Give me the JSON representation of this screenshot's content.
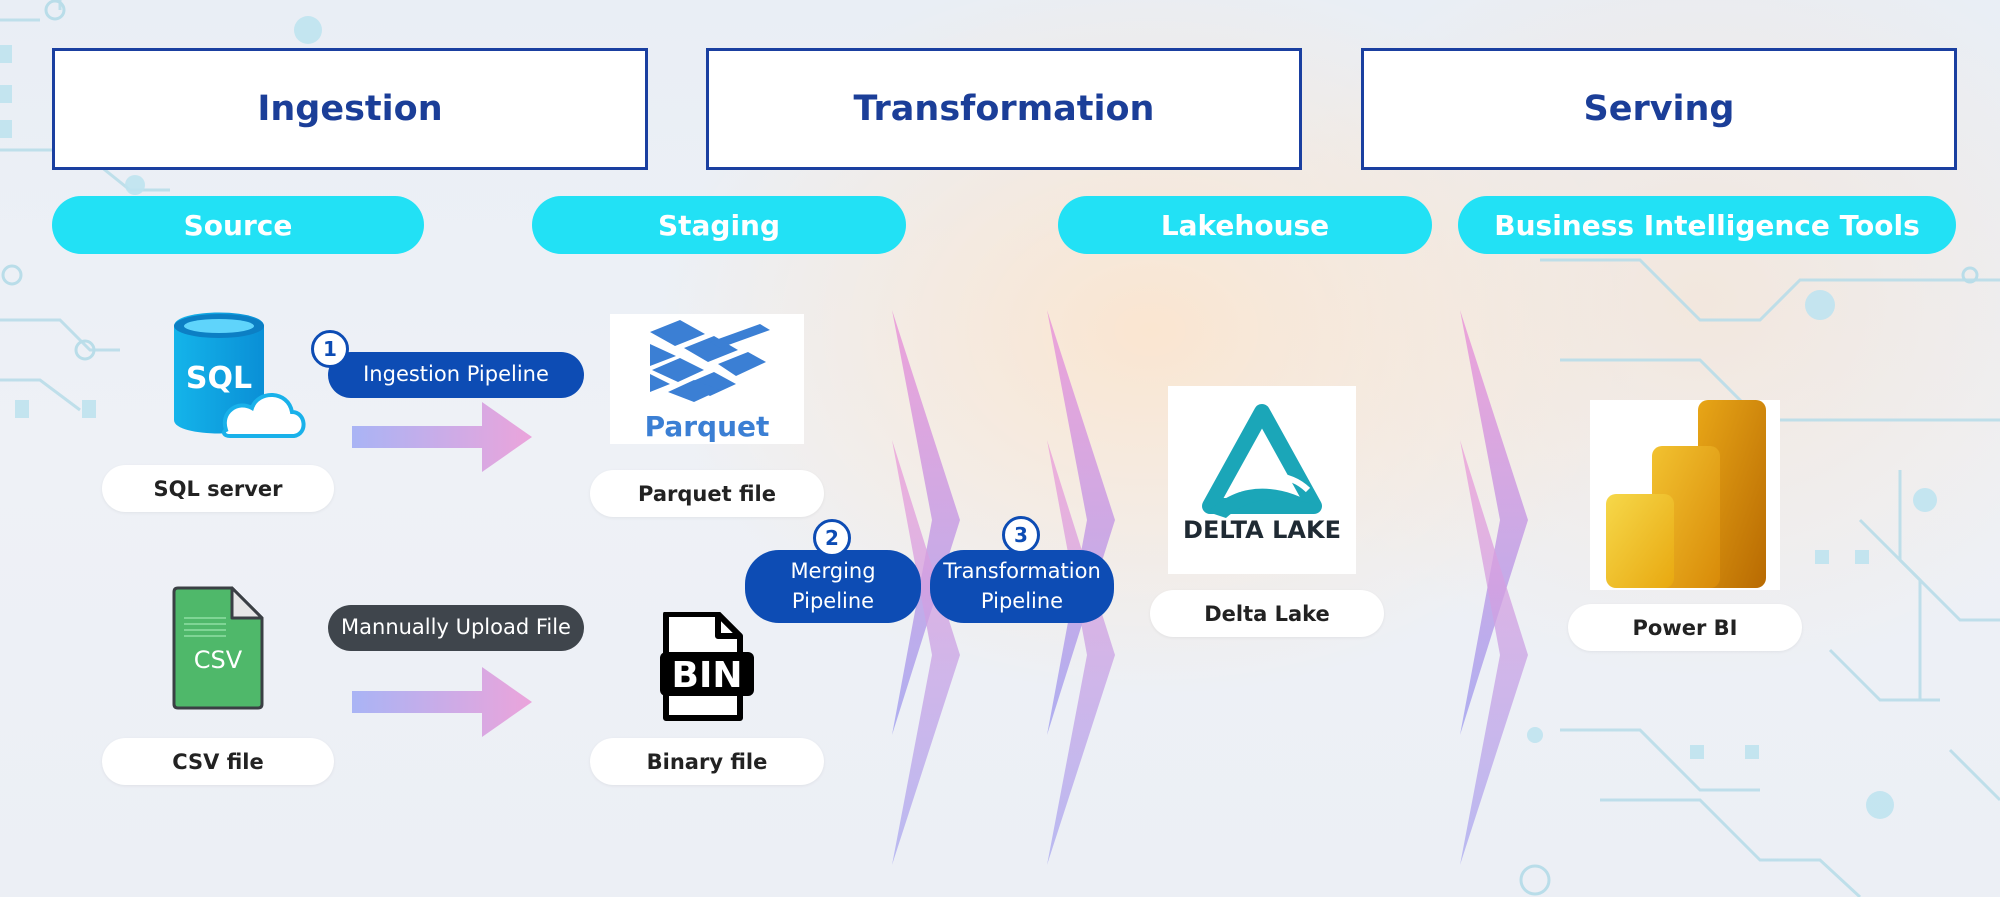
{
  "stages": {
    "ingestion": "Ingestion",
    "transformation": "Transformation",
    "serving": "Serving"
  },
  "categories": {
    "source": "Source",
    "staging": "Staging",
    "lakehouse": "Lakehouse",
    "bi_tools": "Business Intelligence Tools"
  },
  "nodes": {
    "sql_server": "SQL server",
    "csv_file": "CSV file",
    "parquet_file": "Parquet file",
    "binary_file": "Binary file",
    "delta_lake": "Delta Lake",
    "power_bi": "Power BI"
  },
  "pipelines": {
    "ingestion": {
      "step": "1",
      "label": "Ingestion Pipeline"
    },
    "upload": {
      "label": "Mannually Upload File"
    },
    "merging": {
      "step": "2",
      "line1": "Merging",
      "line2": "Pipeline"
    },
    "transformation": {
      "step": "3",
      "line1": "Transformation",
      "line2": "Pipeline"
    }
  },
  "logos": {
    "sql": "SQL",
    "csv": "CSV",
    "parquet": "Parquet",
    "bin": "BIN",
    "delta": "DELTA LAKE"
  },
  "colors": {
    "stage_border": "#1a3fa0",
    "category_fill": "#22e1f5",
    "pipeline_blue": "#0d4cb4",
    "upload_dark": "#3f454c",
    "arrow_start": "#a9b4f5",
    "arrow_end": "#e9a6dc"
  },
  "icons": {
    "sql_server": "sql-database-cloud-icon",
    "csv": "csv-file-icon",
    "parquet": "parquet-logo",
    "binary": "bin-file-icon",
    "delta": "delta-lake-logo",
    "power_bi": "power-bi-logo"
  }
}
